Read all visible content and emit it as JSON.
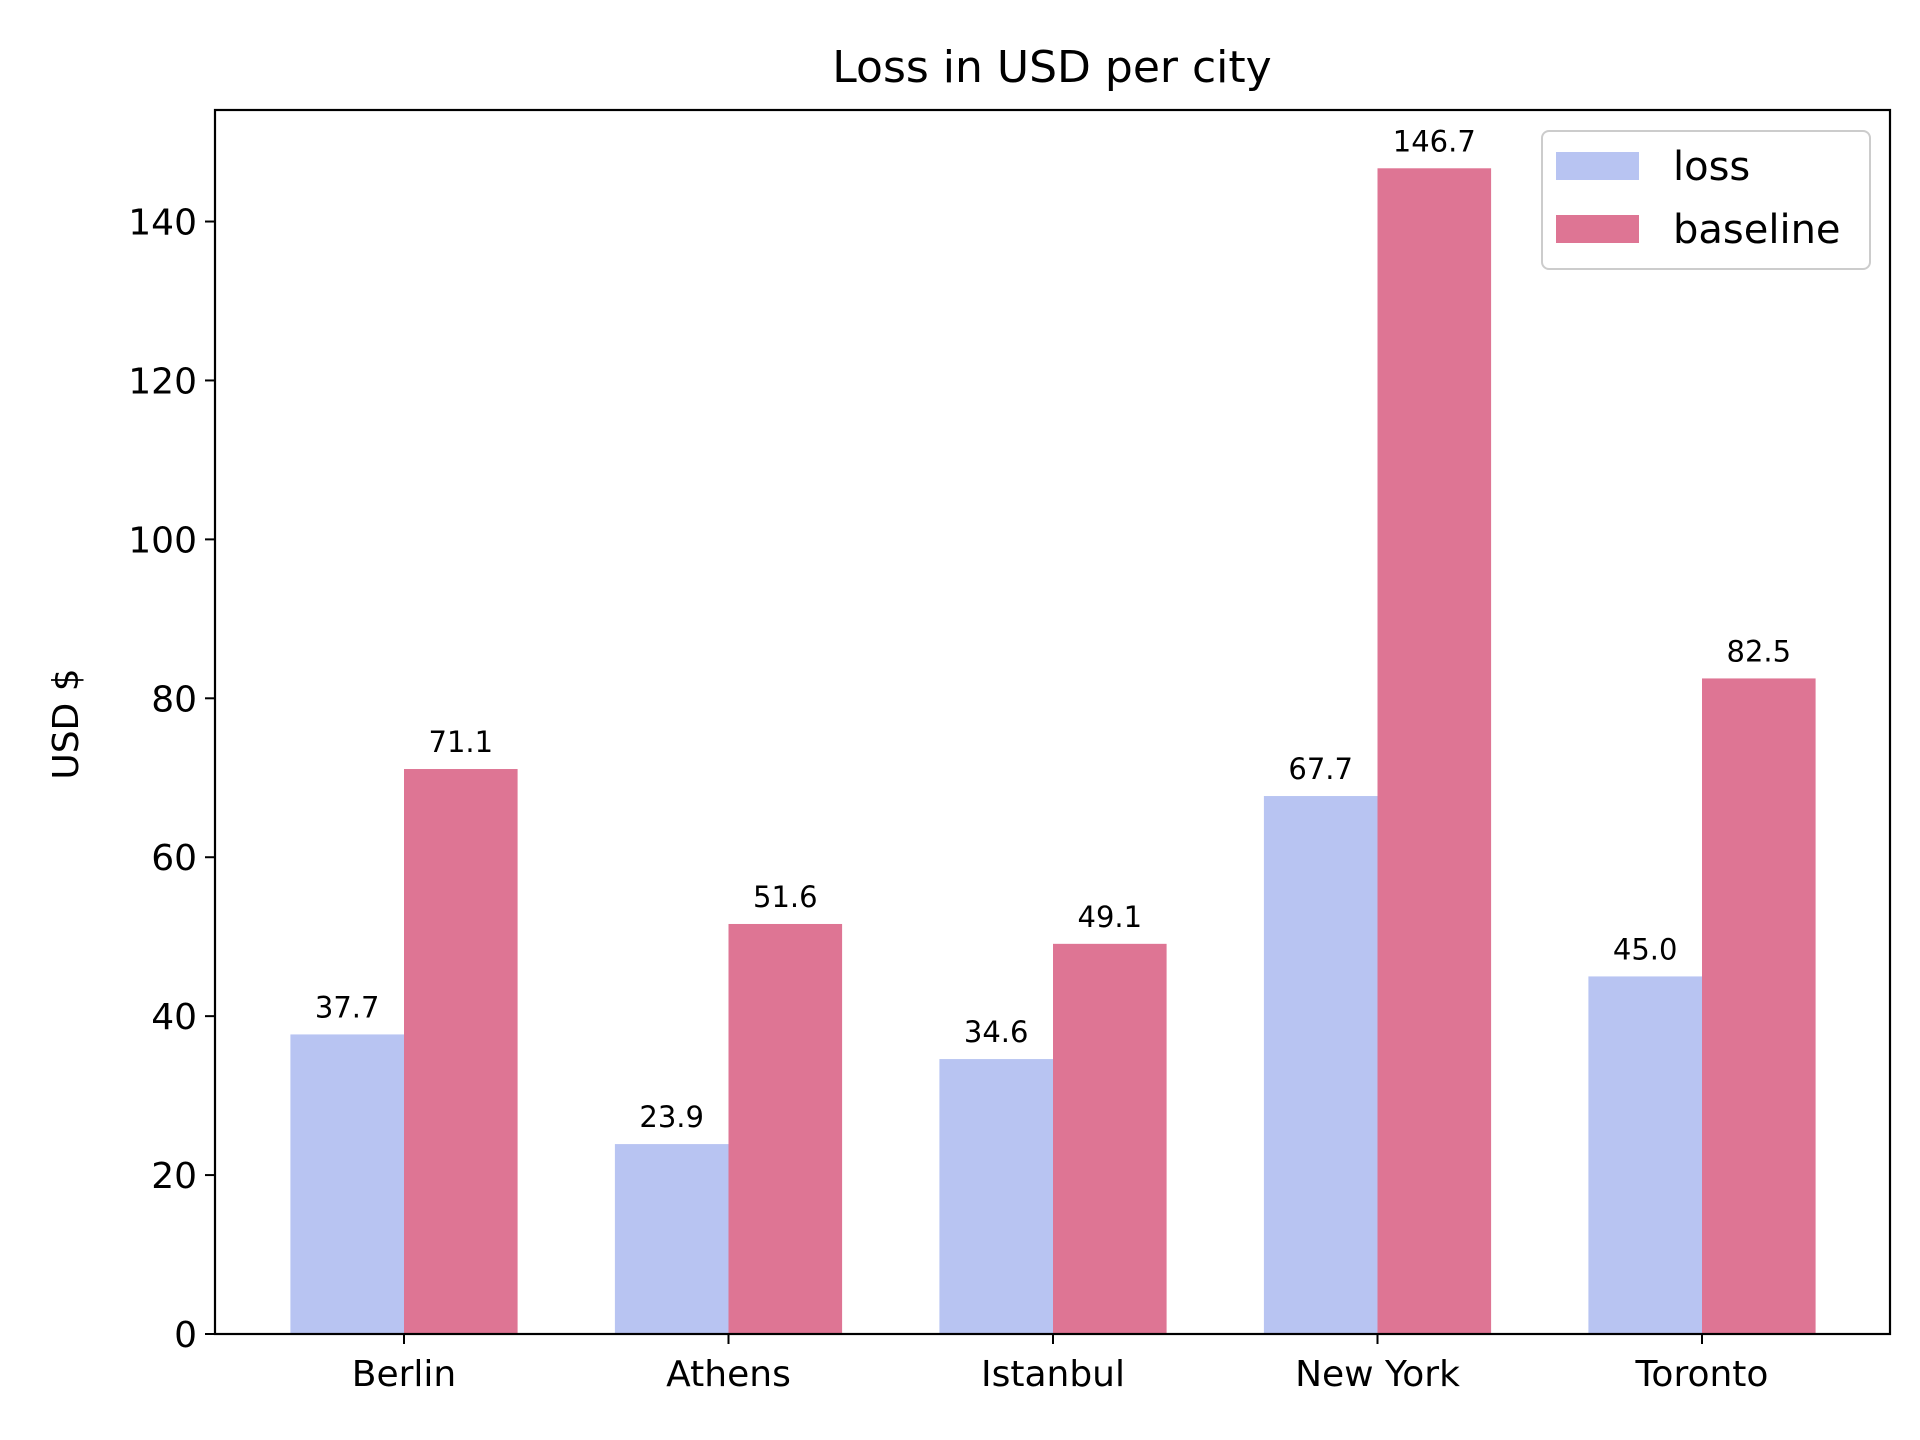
{
  "chart_data": {
    "type": "bar",
    "title": "Loss in USD per city",
    "xlabel": "",
    "ylabel": "USD $",
    "categories": [
      "Berlin",
      "Athens",
      "Istanbul",
      "New York",
      "Toronto"
    ],
    "series": [
      {
        "name": "loss",
        "values": [
          37.7,
          23.9,
          34.6,
          67.7,
          45.0
        ],
        "color": "#b8c4f2"
      },
      {
        "name": "baseline",
        "values": [
          71.1,
          51.6,
          49.1,
          146.7,
          82.5
        ],
        "color": "#de7594"
      }
    ],
    "value_labels": [
      [
        "37.7",
        "23.9",
        "34.6",
        "67.7",
        "45.0"
      ],
      [
        "71.1",
        "51.6",
        "49.1",
        "146.7",
        "82.5"
      ]
    ],
    "ylim": [
      0,
      154.035
    ],
    "yticks": [
      0,
      20,
      40,
      60,
      80,
      100,
      120,
      140
    ],
    "grid": false,
    "legend": "top-right"
  }
}
